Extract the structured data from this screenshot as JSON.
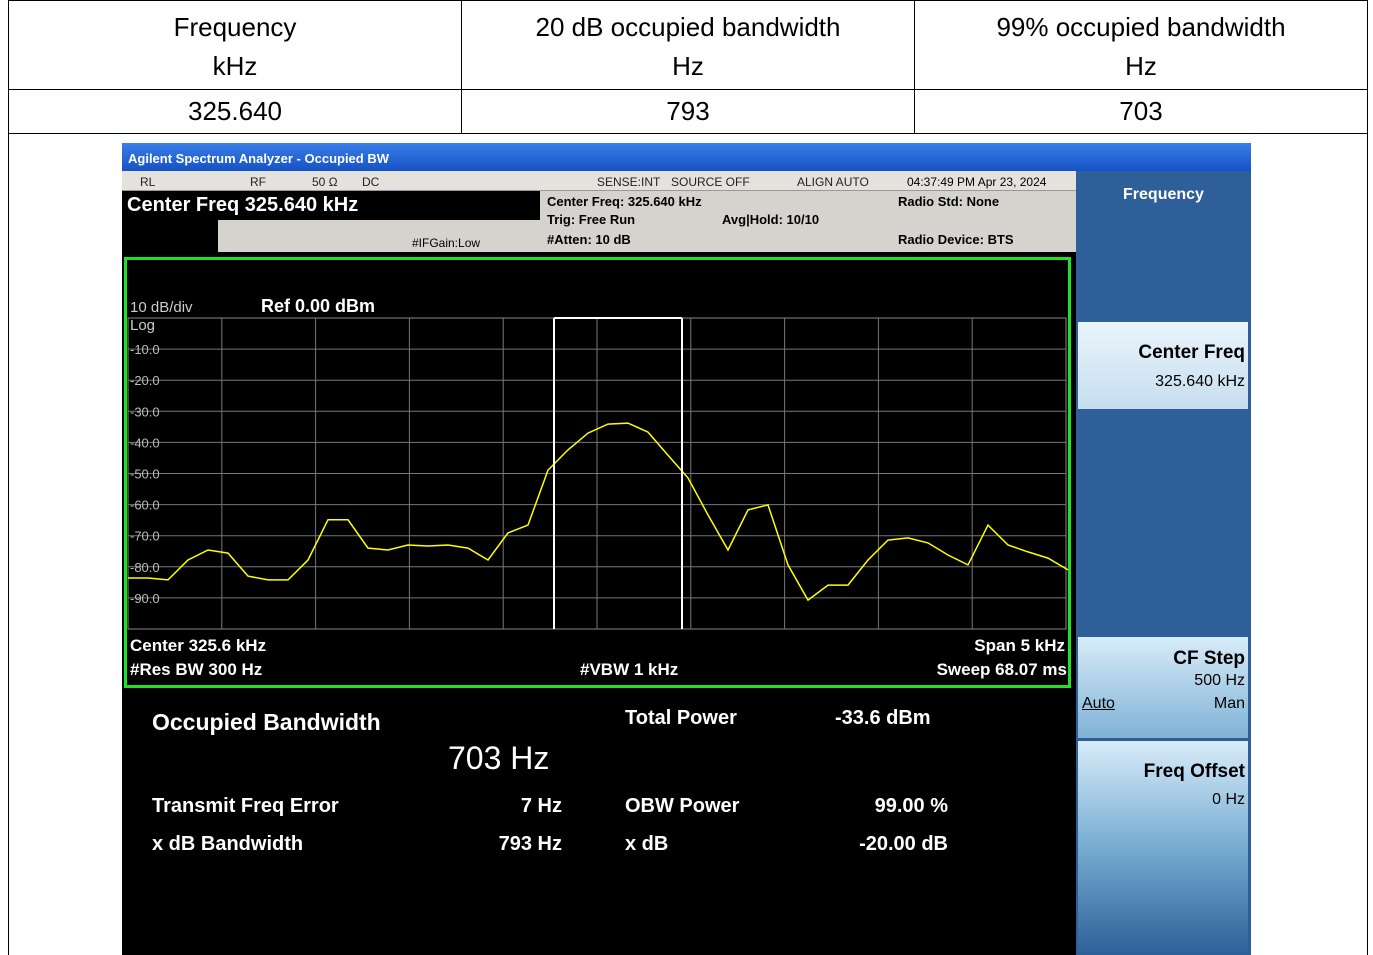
{
  "table": {
    "header": [
      [
        "Frequency",
        "kHz"
      ],
      [
        "20 dB occupied bandwidth",
        "Hz"
      ],
      [
        "99% occupied bandwidth",
        "Hz"
      ]
    ],
    "rows": [
      [
        "325.640",
        "793",
        "703"
      ]
    ]
  },
  "analyzer": {
    "title": "Agilent Spectrum Analyzer - Occupied BW",
    "status": {
      "mode": "RL",
      "rf": "RF",
      "impedance": "50 Ω",
      "coupling": "DC",
      "sense": "SENSE:INT",
      "source": "SOURCE OFF",
      "align": "ALIGN AUTO",
      "time": "04:37:49 PM Apr 23, 2024"
    },
    "active_function": "Center Freq 325.640 kHz",
    "if_gain": "#IFGain:Low",
    "settings": {
      "center": "Center Freq: 325.640 kHz",
      "trig": "Trig: Free Run",
      "avg": "Avg|Hold: 10/10",
      "atten": "#Atten: 10 dB",
      "radio_std": "Radio Std: None",
      "radio_device": "Radio Device: BTS"
    },
    "graph": {
      "scale": "10 dB/div",
      "ref": "Ref 0.00 dBm",
      "log": "Log",
      "center": "Center  325.6 kHz",
      "span": "Span 5 kHz",
      "rbw": "#Res BW  300 Hz",
      "vbw": "#VBW  1 kHz",
      "sweep": "Sweep  68.07 ms"
    },
    "results": {
      "title": "Occupied Bandwidth",
      "obw": "703 Hz",
      "total_power_label": "Total Power",
      "total_power": "-33.6 dBm",
      "tfe_label": "Transmit Freq Error",
      "tfe": "7 Hz",
      "obw_power_label": "OBW Power",
      "obw_power": "99.00 %",
      "xdb_bw_label": "x dB Bandwidth",
      "xdb_bw": "793 Hz",
      "xdb_label": "x dB",
      "xdb": "-20.00 dB"
    },
    "menu": {
      "title": "Frequency",
      "center_freq": "Center Freq",
      "center_freq_value": "325.640 kHz",
      "cf_step": "CF Step",
      "cf_step_value": "500 Hz",
      "auto": "Auto",
      "man": "Man",
      "freq_offset": "Freq Offset",
      "freq_offset_value": "0 Hz"
    }
  },
  "chart_data": {
    "type": "line",
    "ylim": [
      -100,
      0
    ],
    "yticks": [
      {
        "value": -10,
        "label": "-10.0"
      },
      {
        "value": -20,
        "label": "-20.0"
      },
      {
        "value": -30,
        "label": "-30.0"
      },
      {
        "value": -40,
        "label": "-40.0"
      },
      {
        "value": -50,
        "label": "-50.0"
      },
      {
        "value": -60,
        "label": "-60.0"
      },
      {
        "value": -70,
        "label": "-70.0"
      },
      {
        "value": -80,
        "label": "-80.0"
      },
      {
        "value": -90,
        "label": "-90.0"
      }
    ],
    "grid": true,
    "color": "#ffff00",
    "values": [
      -83.6,
      -83.6,
      -84.2,
      -77.8,
      -74.6,
      -75.6,
      -83.0,
      -84.2,
      -84.2,
      -77.8,
      -64.9,
      -64.9,
      -74.0,
      -74.6,
      -73.0,
      -73.3,
      -73.0,
      -74.0,
      -77.8,
      -69.1,
      -66.6,
      -48.9,
      -42.4,
      -37.0,
      -34.1,
      -33.8,
      -36.7,
      -44.1,
      -51.4,
      -63.3,
      -74.6,
      -61.7,
      -60.1,
      -79.4,
      -90.7,
      -85.9,
      -85.9,
      -77.8,
      -71.4,
      -70.7,
      -72.3,
      -76.2,
      -79.4,
      -66.6,
      -73.0,
      -75.2,
      -77.2,
      -81.0
    ]
  }
}
